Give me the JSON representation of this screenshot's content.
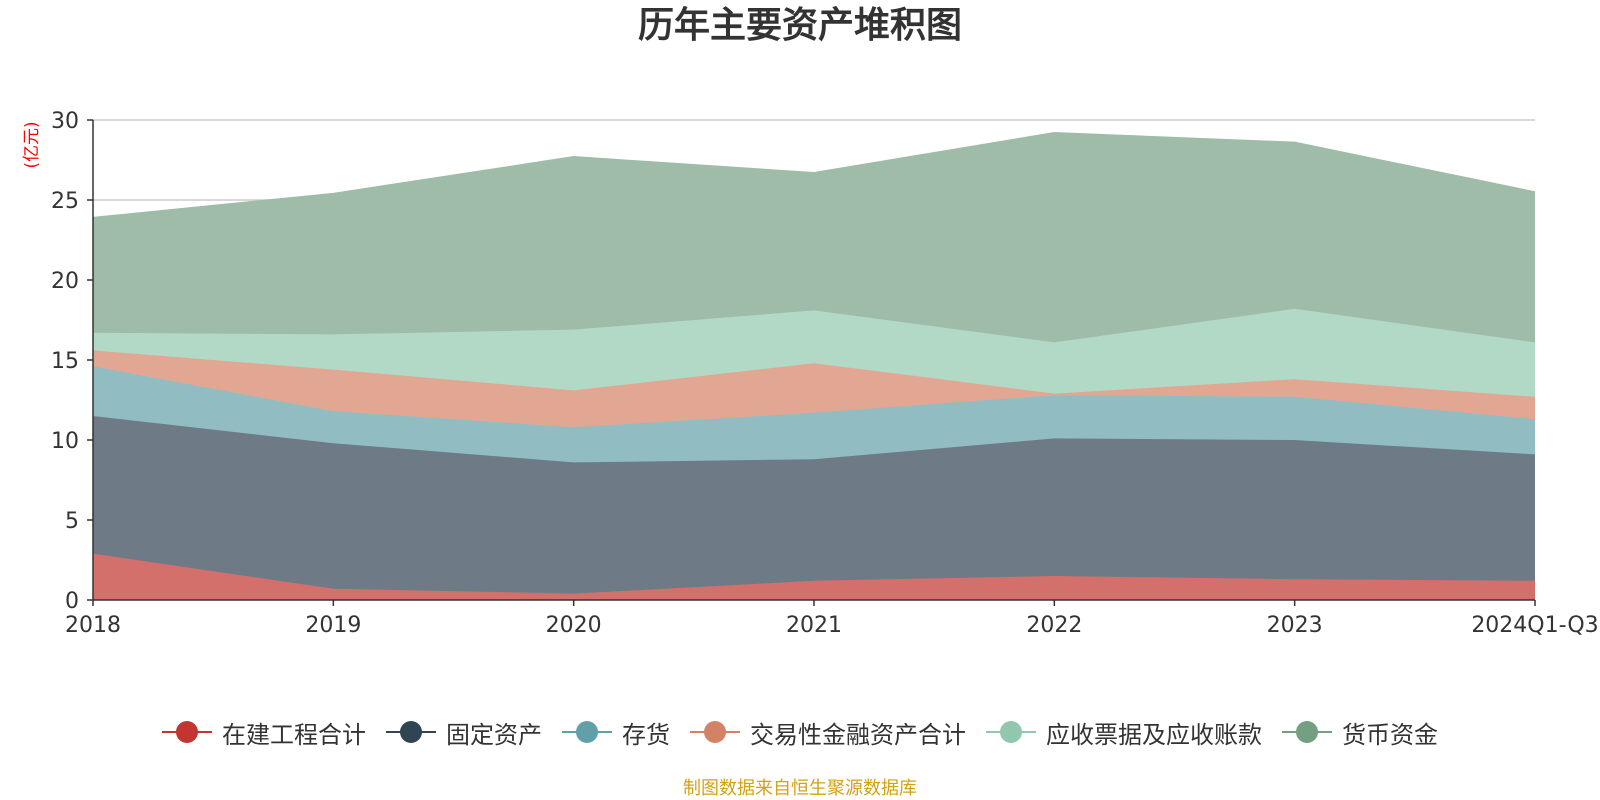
{
  "chart_data": {
    "type": "area",
    "stacked": true,
    "title": "历年主要资产堆积图",
    "ylabel": "(亿元)",
    "xlabel": "",
    "ylim": [
      0,
      30
    ],
    "yticks": [
      0,
      5,
      10,
      15,
      20,
      25,
      30
    ],
    "grid": true,
    "legend_position": "bottom",
    "categories": [
      "2018",
      "2019",
      "2020",
      "2021",
      "2022",
      "2023",
      "2024Q1-Q3"
    ],
    "series": [
      {
        "name": "在建工程合计",
        "color": "#c23531",
        "fill": "#d4706b",
        "values": [
          2.9,
          0.7,
          0.4,
          1.2,
          1.5,
          1.3,
          1.2
        ]
      },
      {
        "name": "固定资产",
        "color": "#2f4554",
        "fill": "#6e7b87",
        "values": [
          8.6,
          9.1,
          8.2,
          7.6,
          8.6,
          8.7,
          7.9
        ]
      },
      {
        "name": "存货",
        "color": "#61a0a8",
        "fill": "#91bdc2",
        "values": [
          3.1,
          2.0,
          2.2,
          2.9,
          2.7,
          2.7,
          2.2
        ]
      },
      {
        "name": "交易性金融资产合计",
        "color": "#d48265",
        "fill": "#e1a792",
        "values": [
          1.0,
          2.6,
          2.3,
          3.1,
          0.1,
          1.1,
          1.4
        ]
      },
      {
        "name": "应收票据及应收账款",
        "color": "#91c7ae",
        "fill": "#b2d9c6",
        "values": [
          1.1,
          2.2,
          3.8,
          3.3,
          3.2,
          4.4,
          3.4
        ]
      },
      {
        "name": "货币资金",
        "color": "#749f83",
        "fill": "#9ebca8",
        "values": [
          7.2,
          8.8,
          10.8,
          8.6,
          13.1,
          10.4,
          9.4
        ]
      }
    ]
  },
  "source_note": "制图数据来自恒生聚源数据库"
}
